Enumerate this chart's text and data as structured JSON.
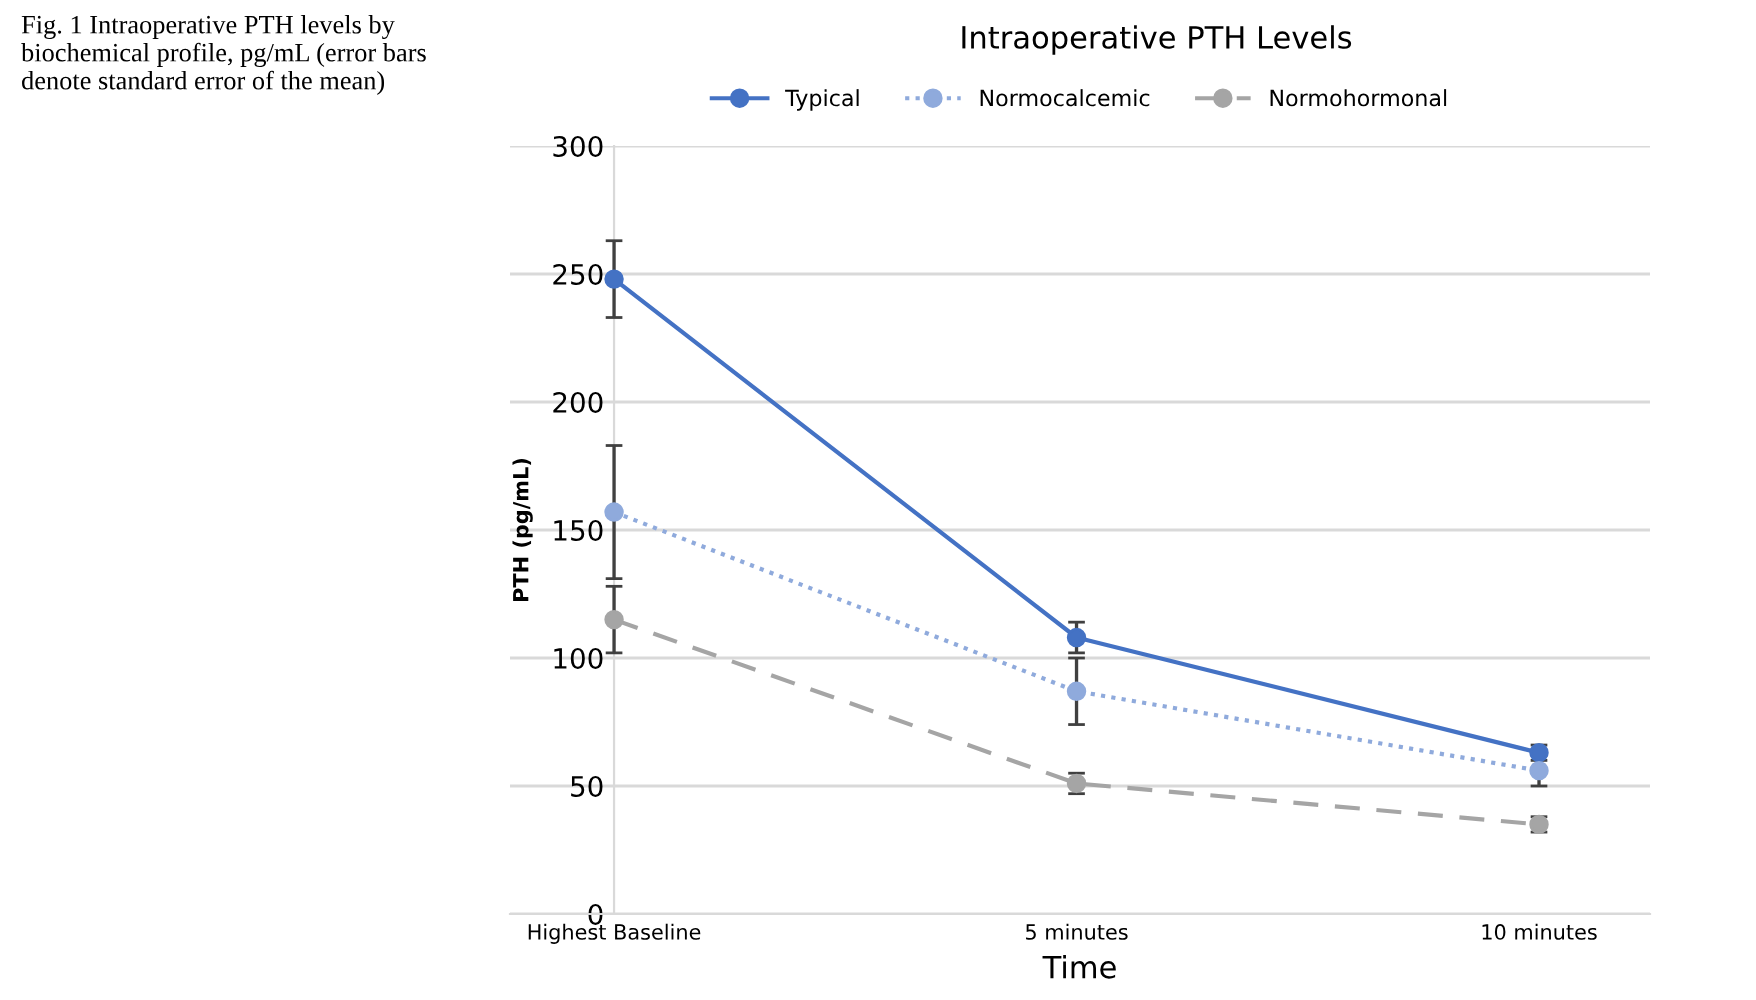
{
  "chart_data": {
    "type": "line",
    "title": "Intraoperative PTH Levels",
    "xlabel": "Time",
    "ylabel": "PTH (pg/mL)",
    "categories": [
      "Highest Baseline",
      "5 minutes",
      "10 minutes"
    ],
    "series": [
      {
        "name": "Typical",
        "color": "#4472c4",
        "line_style": "solid",
        "values": [
          248,
          108,
          63
        ],
        "errors": [
          15,
          6,
          3
        ]
      },
      {
        "name": "Normocalcemic",
        "color": "#8faadc",
        "line_style": "dotted",
        "values": [
          157,
          87,
          56
        ],
        "errors": [
          26,
          13,
          6
        ]
      },
      {
        "name": "Normohormonal",
        "color": "#a5a5a5",
        "line_style": "dashed",
        "values": [
          115,
          51,
          35
        ],
        "errors": [
          13,
          4,
          3
        ]
      }
    ],
    "ylim": [
      0,
      300
    ],
    "yticks": [
      0,
      50,
      100,
      150,
      200,
      250,
      300
    ],
    "grid": "y",
    "legend": "top",
    "marker": "circle",
    "annotations": [
      "Fig. 1 Intraoperative PTH levels by biochemical profile, pg/mL (error bars denote standard error of the mean)"
    ]
  }
}
